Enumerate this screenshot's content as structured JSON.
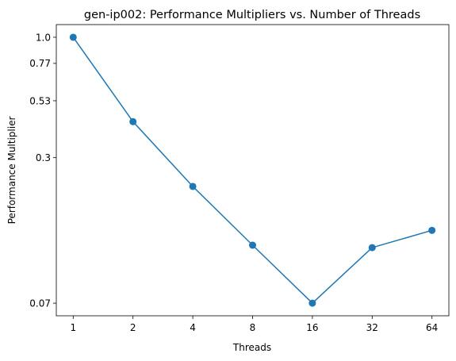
{
  "chart_data": {
    "type": "line",
    "title": "gen-ip002: Performance Multipliers vs. Number of Threads",
    "xlabel": "Threads",
    "ylabel": "Performance Multiplier",
    "x": [
      "1",
      "2",
      "4",
      "8",
      "16",
      "32",
      "64"
    ],
    "series": [
      {
        "values": [
          1.0,
          0.43,
          0.225,
          0.125,
          0.07,
          0.122,
          0.145
        ]
      }
    ],
    "yticks": [
      {
        "value": 1.0,
        "label": "1.0"
      },
      {
        "value": 0.77,
        "label": "0.77"
      },
      {
        "value": 0.53,
        "label": "0.53"
      },
      {
        "value": 0.3,
        "label": "0.3"
      },
      {
        "value": 0.07,
        "label": "0.07"
      }
    ],
    "yscale": "log",
    "ylim": [
      0.0617,
      1.135
    ],
    "grid": false,
    "legend": "none",
    "line_color": "#1f77b4"
  }
}
